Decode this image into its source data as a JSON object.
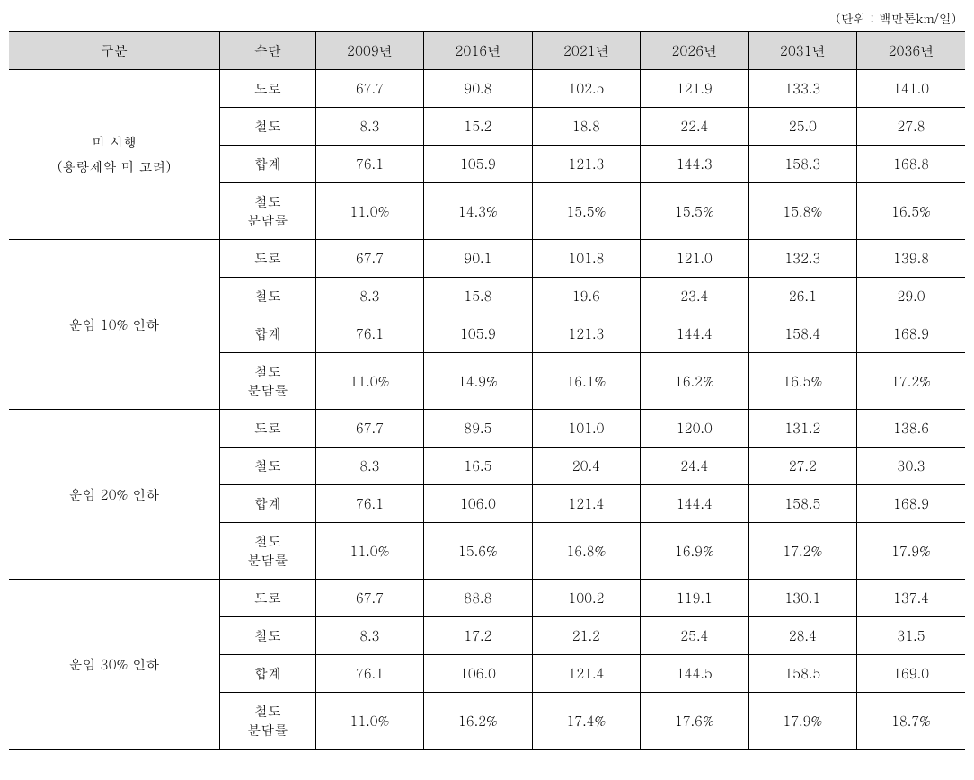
{
  "unit_label": "(단위 : 백만톤km/일)",
  "headers": {
    "category": "구분",
    "type": "수단",
    "y2009": "2009년",
    "y2016": "2016년",
    "y2021": "2021년",
    "y2026": "2026년",
    "y2031": "2031년",
    "y2036": "2036년"
  },
  "row_types": {
    "road": "도로",
    "rail": "철도",
    "total": "합계",
    "share": "철도\n분담률"
  },
  "groups": [
    {
      "label": "미 시행\n(용량제약 미 고려)",
      "rows": [
        {
          "type": "road",
          "v": [
            "67.7",
            "90.8",
            "102.5",
            "121.9",
            "133.3",
            "141.0"
          ]
        },
        {
          "type": "rail",
          "v": [
            "8.3",
            "15.2",
            "18.8",
            "22.4",
            "25.0",
            "27.8"
          ]
        },
        {
          "type": "total",
          "v": [
            "76.1",
            "105.9",
            "121.3",
            "144.3",
            "158.3",
            "168.8"
          ]
        },
        {
          "type": "share",
          "v": [
            "11.0%",
            "14.3%",
            "15.5%",
            "15.5%",
            "15.8%",
            "16.5%"
          ]
        }
      ]
    },
    {
      "label": "운임 10% 인하",
      "rows": [
        {
          "type": "road",
          "v": [
            "67.7",
            "90.1",
            "101.8",
            "121.0",
            "132.3",
            "139.8"
          ]
        },
        {
          "type": "rail",
          "v": [
            "8.3",
            "15.8",
            "19.6",
            "23.4",
            "26.1",
            "29.0"
          ]
        },
        {
          "type": "total",
          "v": [
            "76.1",
            "105.9",
            "121.3",
            "144.4",
            "158.4",
            "168.9"
          ]
        },
        {
          "type": "share",
          "v": [
            "11.0%",
            "14.9%",
            "16.1%",
            "16.2%",
            "16.5%",
            "17.2%"
          ]
        }
      ]
    },
    {
      "label": "운임 20% 인하",
      "rows": [
        {
          "type": "road",
          "v": [
            "67.7",
            "89.5",
            "101.0",
            "120.0",
            "131.2",
            "138.6"
          ]
        },
        {
          "type": "rail",
          "v": [
            "8.3",
            "16.5",
            "20.4",
            "24.4",
            "27.2",
            "30.3"
          ]
        },
        {
          "type": "total",
          "v": [
            "76.1",
            "106.0",
            "121.4",
            "144.4",
            "158.5",
            "168.9"
          ]
        },
        {
          "type": "share",
          "v": [
            "11.0%",
            "15.6%",
            "16.8%",
            "16.9%",
            "17.2%",
            "17.9%"
          ]
        }
      ]
    },
    {
      "label": "운임 30% 인하",
      "rows": [
        {
          "type": "road",
          "v": [
            "67.7",
            "88.8",
            "100.2",
            "119.1",
            "130.1",
            "137.4"
          ]
        },
        {
          "type": "rail",
          "v": [
            "8.3",
            "17.2",
            "21.2",
            "25.4",
            "28.4",
            "31.5"
          ]
        },
        {
          "type": "total",
          "v": [
            "76.1",
            "106.0",
            "121.4",
            "144.5",
            "158.5",
            "169.0"
          ]
        },
        {
          "type": "share",
          "v": [
            "11.0%",
            "16.2%",
            "17.4%",
            "17.6%",
            "17.9%",
            "18.7%"
          ]
        }
      ]
    }
  ]
}
